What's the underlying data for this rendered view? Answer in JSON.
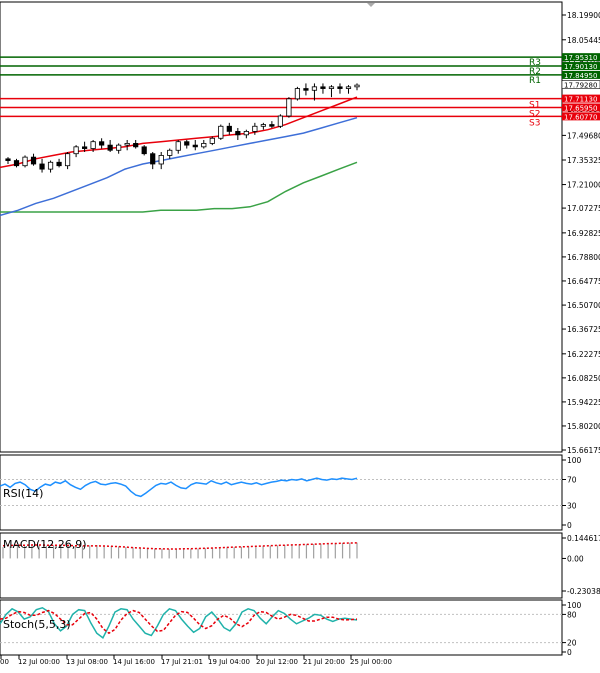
{
  "chart_data": {
    "type": "candlestick",
    "main": {
      "y_ticks": [
        "18.19900",
        "18.05445",
        "17.93100",
        "17.79280",
        "17.64990",
        "17.49680",
        "17.35325",
        "17.21000",
        "17.07275",
        "16.92825",
        "16.78800",
        "16.64775",
        "16.50700",
        "16.36725",
        "16.22275",
        "16.08250",
        "15.94225",
        "15.80200",
        "15.66175"
      ],
      "ylim": [
        15.66175,
        18.199
      ],
      "levels": [
        {
          "label": "R3",
          "value": 17.9531,
          "price_text": "17.95310",
          "kind": "resistance"
        },
        {
          "label": "R2",
          "value": 17.9013,
          "price_text": "17.90130",
          "kind": "resistance"
        },
        {
          "label": "R1",
          "value": 17.8495,
          "price_text": "17.84950",
          "kind": "resistance"
        },
        {
          "label": "S1",
          "value": 17.7113,
          "price_text": "17.71130",
          "kind": "support"
        },
        {
          "label": "S2",
          "value": 17.6595,
          "price_text": "17.65950",
          "kind": "support"
        },
        {
          "label": "S3",
          "value": 17.6077,
          "price_text": "17.60770",
          "kind": "support"
        }
      ],
      "current_price": {
        "value": 17.7928,
        "price_text": "17.79280"
      },
      "ma_fast": [
        17.31,
        17.33,
        17.36,
        17.38,
        17.4,
        17.41,
        17.42,
        17.43,
        17.45,
        17.46,
        17.47,
        17.48,
        17.49,
        17.5,
        17.51,
        17.53,
        17.56,
        17.6,
        17.64,
        17.68,
        17.72
      ],
      "ma_mid": [
        17.03,
        17.06,
        17.1,
        17.13,
        17.17,
        17.21,
        17.25,
        17.3,
        17.33,
        17.35,
        17.37,
        17.39,
        17.41,
        17.43,
        17.45,
        17.47,
        17.49,
        17.51,
        17.54,
        17.57,
        17.6
      ],
      "ma_slow": [
        17.05,
        17.05,
        17.05,
        17.05,
        17.05,
        17.05,
        17.05,
        17.05,
        17.05,
        17.06,
        17.06,
        17.06,
        17.07,
        17.07,
        17.08,
        17.11,
        17.17,
        17.22,
        17.26,
        17.3,
        17.34
      ],
      "candles": [
        [
          17.36,
          17.37,
          17.33,
          17.35
        ],
        [
          17.35,
          17.36,
          17.31,
          17.32
        ],
        [
          17.32,
          17.38,
          17.31,
          17.37
        ],
        [
          17.37,
          17.39,
          17.32,
          17.33
        ],
        [
          17.33,
          17.36,
          17.28,
          17.3
        ],
        [
          17.3,
          17.35,
          17.28,
          17.34
        ],
        [
          17.34,
          17.36,
          17.31,
          17.32
        ],
        [
          17.32,
          17.4,
          17.3,
          17.39
        ],
        [
          17.39,
          17.44,
          17.37,
          17.43
        ],
        [
          17.43,
          17.46,
          17.4,
          17.42
        ],
        [
          17.42,
          17.47,
          17.4,
          17.46
        ],
        [
          17.46,
          17.48,
          17.42,
          17.44
        ],
        [
          17.44,
          17.47,
          17.4,
          17.41
        ],
        [
          17.41,
          17.45,
          17.39,
          17.44
        ],
        [
          17.44,
          17.47,
          17.41,
          17.45
        ],
        [
          17.45,
          17.47,
          17.42,
          17.43
        ],
        [
          17.43,
          17.44,
          17.38,
          17.39
        ],
        [
          17.39,
          17.4,
          17.3,
          17.33
        ],
        [
          17.33,
          17.4,
          17.3,
          17.38
        ],
        [
          17.38,
          17.42,
          17.36,
          17.41
        ],
        [
          17.41,
          17.47,
          17.39,
          17.46
        ],
        [
          17.46,
          17.47,
          17.42,
          17.44
        ],
        [
          17.44,
          17.47,
          17.41,
          17.43
        ],
        [
          17.43,
          17.47,
          17.42,
          17.45
        ],
        [
          17.45,
          17.49,
          17.44,
          17.48
        ],
        [
          17.48,
          17.56,
          17.47,
          17.55
        ],
        [
          17.55,
          17.57,
          17.5,
          17.52
        ],
        [
          17.52,
          17.54,
          17.47,
          17.5
        ],
        [
          17.5,
          17.53,
          17.48,
          17.52
        ],
        [
          17.52,
          17.57,
          17.5,
          17.55
        ],
        [
          17.55,
          17.57,
          17.53,
          17.56
        ],
        [
          17.56,
          17.58,
          17.54,
          17.55
        ],
        [
          17.55,
          17.62,
          17.54,
          17.61
        ],
        [
          17.61,
          17.72,
          17.6,
          17.71
        ],
        [
          17.71,
          17.78,
          17.7,
          17.77
        ],
        [
          17.77,
          17.8,
          17.73,
          17.76
        ],
        [
          17.76,
          17.8,
          17.7,
          17.78
        ],
        [
          17.78,
          17.8,
          17.74,
          17.77
        ],
        [
          17.77,
          17.79,
          17.72,
          17.78
        ],
        [
          17.78,
          17.8,
          17.74,
          17.77
        ],
        [
          17.77,
          17.79,
          17.74,
          17.78
        ],
        [
          17.78,
          17.8,
          17.76,
          17.79
        ]
      ]
    },
    "rsi": {
      "label": "RSI(14)",
      "ticks": [
        "100",
        "70",
        "30",
        "0"
      ],
      "ylim": [
        0,
        100
      ],
      "values": [
        60,
        63,
        58,
        64,
        66,
        62,
        55,
        52,
        58,
        63,
        61,
        66,
        64,
        68,
        62,
        58,
        55,
        61,
        65,
        67,
        63,
        62,
        64,
        65,
        63,
        60,
        52,
        46,
        44,
        49,
        55,
        61,
        64,
        63,
        66,
        61,
        57,
        56,
        62,
        65,
        64,
        63,
        68,
        65,
        63,
        66,
        62,
        64,
        66,
        64,
        63,
        65,
        62,
        64,
        66,
        67,
        69,
        68,
        70,
        69,
        71,
        68,
        70,
        72,
        70,
        69,
        71,
        70,
        72,
        71,
        70,
        72
      ]
    },
    "macd": {
      "label": "MACD(12,26,9)",
      "ticks": [
        "0.144617",
        "0.00",
        "-0.230389"
      ],
      "ylim": [
        -0.230389,
        0.144617
      ],
      "histogram": [
        0.08,
        0.085,
        0.09,
        0.088,
        0.09,
        0.092,
        0.09,
        0.094,
        0.095,
        0.09,
        0.085,
        0.09,
        0.092,
        0.095,
        0.09,
        0.088,
        0.085,
        0.08,
        0.078,
        0.075,
        0.072,
        0.07,
        0.068,
        0.066,
        0.065,
        0.066,
        0.068,
        0.07,
        0.072,
        0.074,
        0.076,
        0.078,
        0.08,
        0.082,
        0.084,
        0.086,
        0.088,
        0.09,
        0.092,
        0.094,
        0.096,
        0.098,
        0.1,
        0.102,
        0.104,
        0.106,
        0.108,
        0.11,
        0.111,
        0.112
      ],
      "signal": [
        0.09,
        0.092,
        0.094,
        0.094,
        0.095,
        0.095,
        0.094,
        0.094,
        0.093,
        0.092,
        0.09,
        0.089,
        0.089,
        0.089,
        0.088,
        0.086,
        0.084,
        0.08,
        0.077,
        0.074,
        0.071,
        0.069,
        0.068,
        0.067,
        0.067,
        0.068,
        0.069,
        0.07,
        0.072,
        0.074,
        0.076,
        0.078,
        0.08,
        0.082,
        0.084,
        0.086,
        0.088,
        0.09,
        0.092,
        0.094,
        0.096,
        0.097,
        0.099,
        0.101,
        0.103,
        0.105,
        0.106,
        0.108,
        0.109,
        0.11
      ]
    },
    "stoch": {
      "label": "Stoch(5,5,3)",
      "ticks": [
        "100",
        "80",
        "20",
        "0"
      ],
      "ylim": [
        0,
        100
      ],
      "main": [
        60,
        80,
        92,
        85,
        70,
        75,
        90,
        94,
        86,
        60,
        45,
        55,
        80,
        90,
        88,
        62,
        40,
        30,
        55,
        85,
        92,
        90,
        70,
        55,
        40,
        35,
        55,
        80,
        92,
        88,
        70,
        55,
        42,
        50,
        75,
        85,
        70,
        52,
        45,
        60,
        85,
        92,
        88,
        72,
        60,
        75,
        88,
        82,
        70,
        60,
        66,
        72,
        80,
        78,
        70,
        65,
        70,
        72,
        70,
        68
      ],
      "signal": [
        70,
        72,
        80,
        86,
        84,
        78,
        78,
        84,
        88,
        82,
        70,
        58,
        58,
        70,
        82,
        84,
        70,
        50,
        40,
        48,
        68,
        82,
        88,
        84,
        70,
        56,
        44,
        46,
        62,
        78,
        86,
        84,
        72,
        58,
        50,
        56,
        70,
        78,
        72,
        60,
        54,
        62,
        78,
        86,
        84,
        76,
        70,
        74,
        80,
        78,
        72,
        66,
        66,
        70,
        74,
        74,
        70,
        68,
        69,
        70
      ]
    },
    "x_ticks": [
      "00",
      "12 Jul 00:00",
      "13 Jul 08:00",
      "14 Jul 16:00",
      "17 Jul 21:01",
      "19 Jul 04:00",
      "20 Jul 12:00",
      "21 Jul 20:00",
      "25 Jul 00:00"
    ],
    "colors": {
      "resistance": "#006400",
      "support": "#e8000b",
      "ma_fast": "#e8000b",
      "ma_mid": "#3e6fd8",
      "ma_slow": "#3aa246",
      "rsi": "#1e90ff",
      "macd": "#e8000b",
      "stoch_main": "#20b2aa",
      "stoch_signal": "#e8000b",
      "candle": "#000000"
    }
  }
}
